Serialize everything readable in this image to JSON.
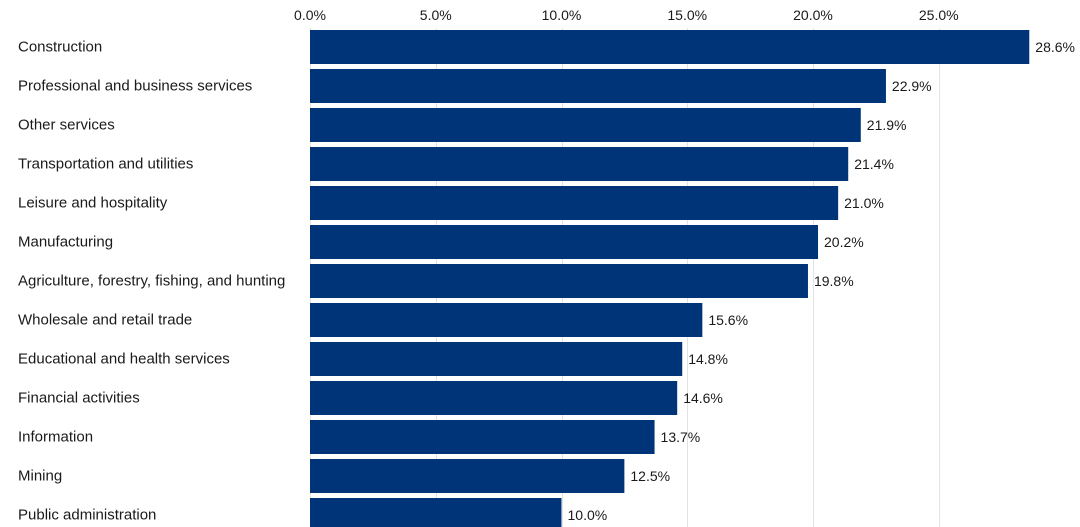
{
  "chart_data": {
    "type": "bar",
    "orientation": "horizontal",
    "categories": [
      "Construction",
      "Professional and business services",
      "Other services",
      "Transportation and utilities",
      "Leisure and hospitality",
      "Manufacturing",
      "Agriculture, forestry, fishing, and hunting",
      "Wholesale and retail trade",
      "Educational and health services",
      "Financial activities",
      "Information",
      "Mining",
      "Public administration"
    ],
    "values": [
      28.6,
      22.9,
      21.9,
      21.4,
      21.0,
      20.2,
      19.8,
      15.6,
      14.8,
      14.6,
      13.7,
      12.5,
      10.0
    ],
    "value_labels": [
      "28.6%",
      "22.9%",
      "21.9%",
      "21.4%",
      "21.0%",
      "20.2%",
      "19.8%",
      "15.6%",
      "14.8%",
      "14.6%",
      "13.7%",
      "12.5%",
      "10.0%"
    ],
    "x_ticks": [
      0,
      5,
      10,
      15,
      20,
      25
    ],
    "x_tick_labels": [
      "0.0%",
      "5.0%",
      "10.0%",
      "15.0%",
      "20.0%",
      "25.0%"
    ],
    "xlim": [
      0,
      28.6
    ],
    "title": "",
    "xlabel": "",
    "ylabel": "",
    "grid": "vertical",
    "x_axis_position": "top",
    "bar_color": "#003478",
    "grid_color": "#e3e3e3",
    "text_color": "#1a1a1a"
  }
}
